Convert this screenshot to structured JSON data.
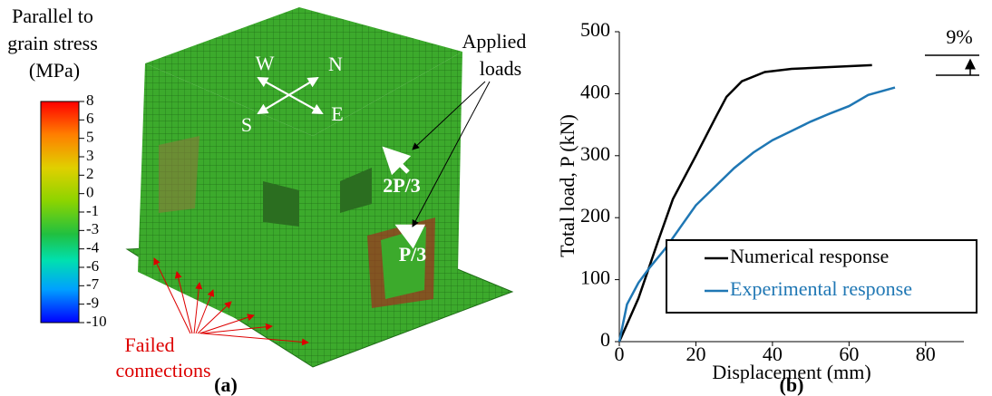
{
  "panel_a": {
    "legend_title": [
      "Parallel to",
      "grain stress",
      "(MPa)"
    ],
    "legend_ticks": [
      "8",
      "6",
      "5",
      "3",
      "2",
      "0",
      "-1",
      "-3",
      "-4",
      "-6",
      "-7",
      "-9",
      "-10"
    ],
    "compass": [
      "W",
      "N",
      "S",
      "E"
    ],
    "applied_loads": [
      "Applied",
      "loads"
    ],
    "load_upper": "2P/3",
    "load_lower": "P/3",
    "failed": [
      "Failed",
      "connections"
    ],
    "label": "(a)"
  },
  "chart_data": {
    "type": "line",
    "title": "(b)",
    "xlabel": "Displacement (mm)",
    "ylabel": "Total load, P (kN)",
    "annotation": "9%",
    "xlim": [
      0,
      90
    ],
    "ylim": [
      0,
      500
    ],
    "xticks": [
      0,
      20,
      40,
      60,
      80
    ],
    "yticks": [
      0,
      100,
      200,
      300,
      400,
      500
    ],
    "legend": "lower right",
    "series": [
      {
        "name": "Numerical response",
        "color": "#000000",
        "x": [
          0,
          5,
          10,
          14,
          20,
          25,
          28,
          32,
          38,
          45,
          55,
          66
        ],
        "values": [
          0,
          70,
          160,
          230,
          300,
          360,
          395,
          420,
          435,
          440,
          443,
          446
        ]
      },
      {
        "name": "Experimental response",
        "color": "#1f77b4",
        "x": [
          0,
          2,
          5,
          8,
          12,
          16,
          20,
          25,
          30,
          35,
          40,
          45,
          50,
          55,
          60,
          65,
          72
        ],
        "values": [
          0,
          60,
          95,
          120,
          150,
          185,
          220,
          250,
          280,
          305,
          325,
          340,
          355,
          368,
          380,
          398,
          410
        ]
      }
    ]
  }
}
